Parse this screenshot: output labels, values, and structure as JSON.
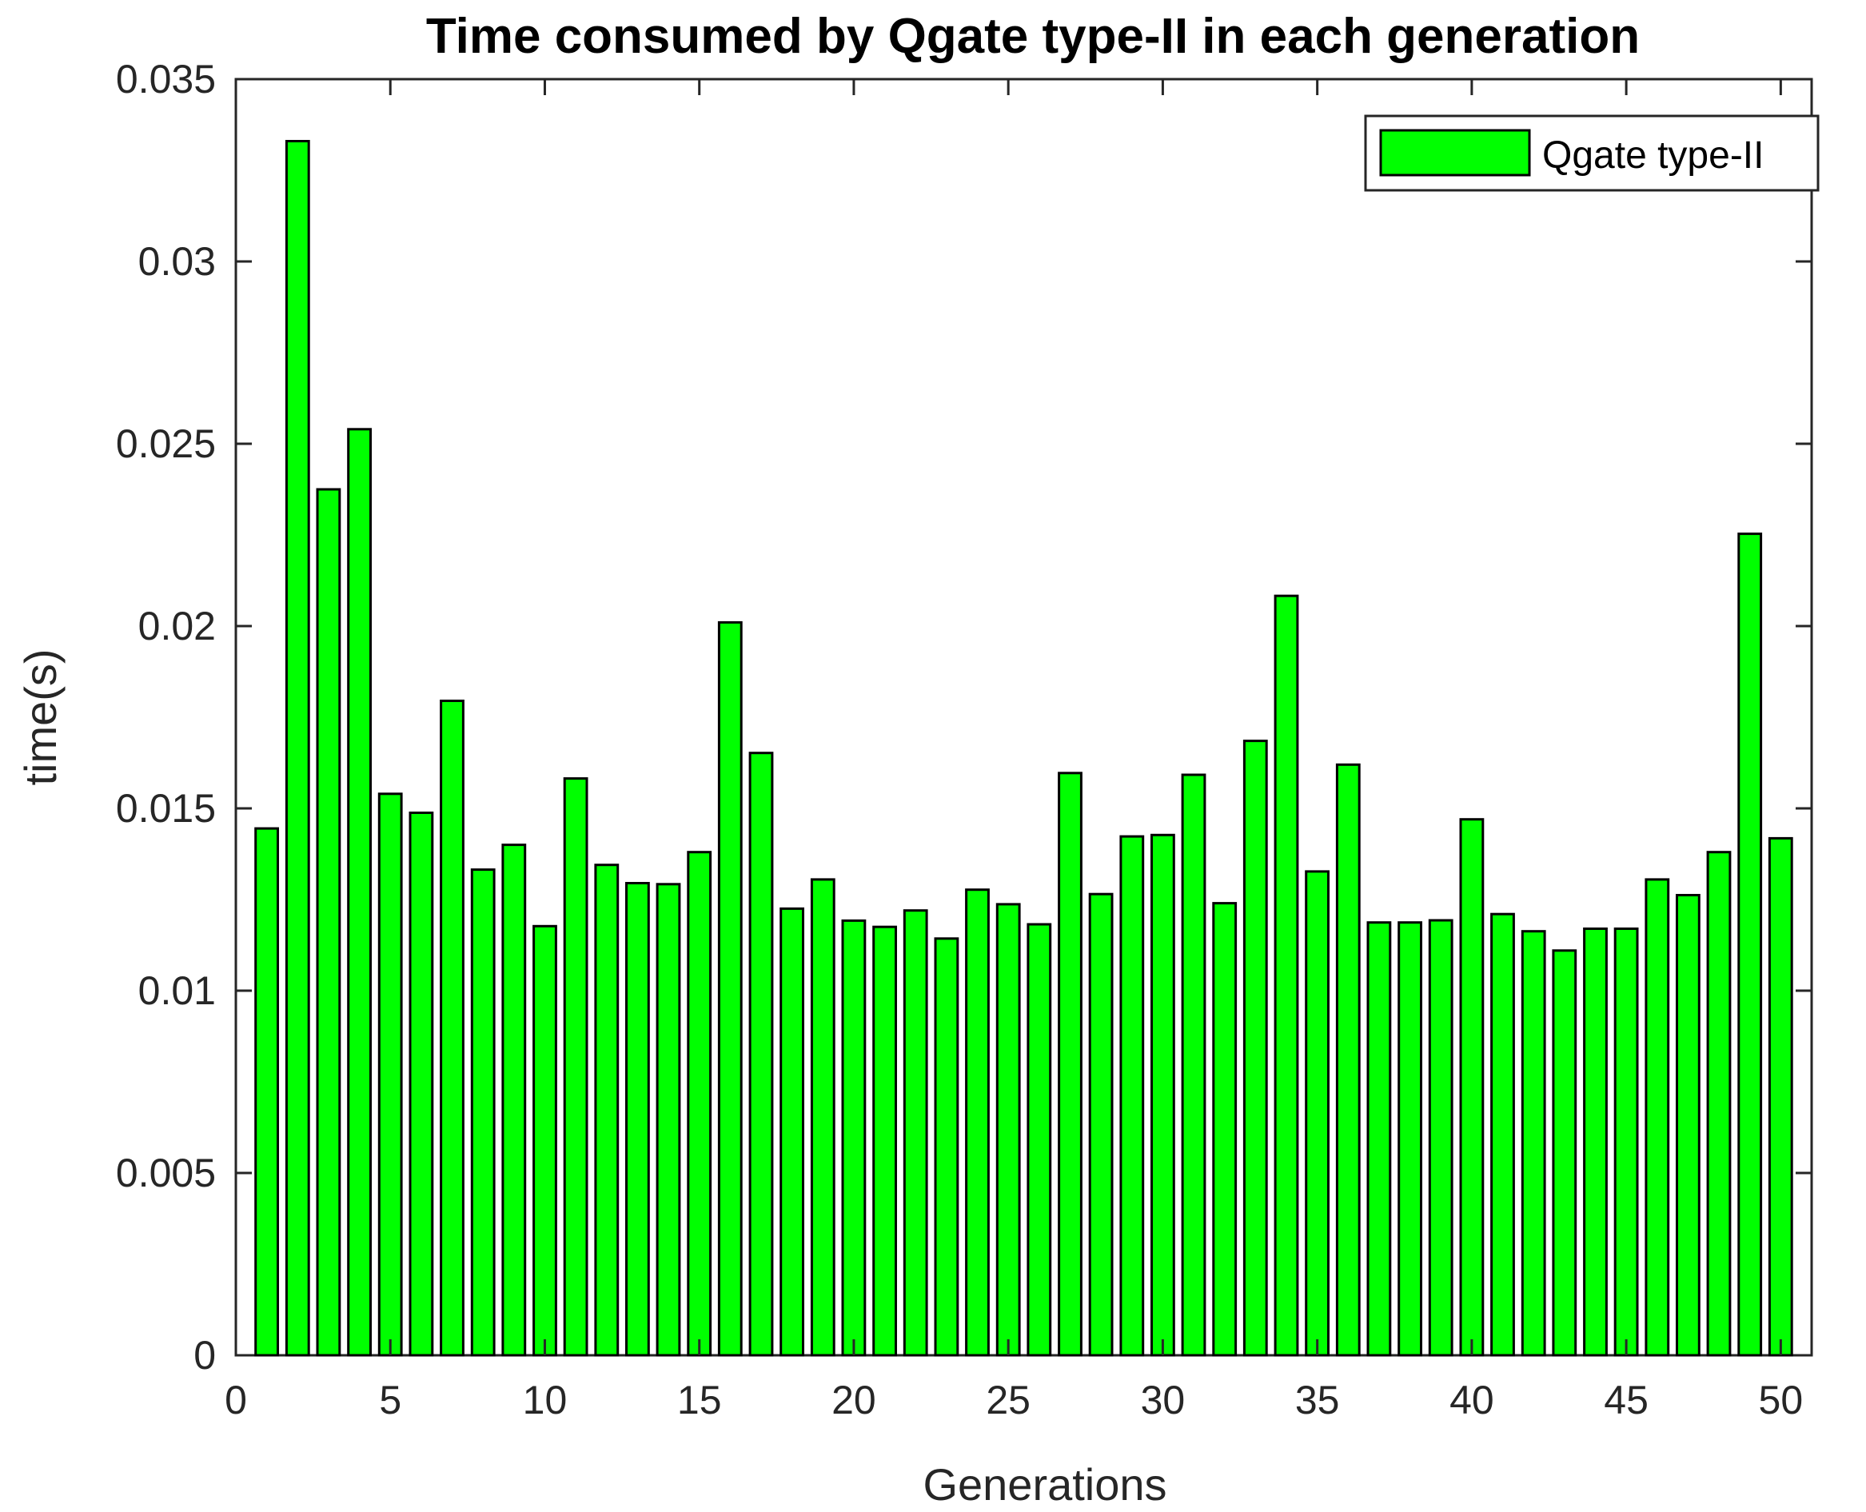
{
  "chart_data": {
    "type": "bar",
    "title": "Time consumed by Qgate type-II in each generation",
    "xlabel": "Generations",
    "ylabel": "time(s)",
    "xlim": [
      0,
      51
    ],
    "ylim": [
      0,
      0.035
    ],
    "xticks": [
      0,
      5,
      10,
      15,
      20,
      25,
      30,
      35,
      40,
      45,
      50
    ],
    "xtick_labels": [
      "0",
      "5",
      "10",
      "15",
      "20",
      "25",
      "30",
      "35",
      "40",
      "45",
      "50"
    ],
    "yticks": [
      0,
      0.005,
      0.01,
      0.015,
      0.02,
      0.025,
      0.03,
      0.035
    ],
    "ytick_labels": [
      "0",
      "0.005",
      "0.01",
      "0.015",
      "0.02",
      "0.025",
      "0.03",
      "0.035"
    ],
    "legend_position": "top-right",
    "grid": false,
    "series": [
      {
        "name": "Qgate type-II",
        "color": "#00ff00",
        "x": [
          1,
          2,
          3,
          4,
          5,
          6,
          7,
          8,
          9,
          10,
          11,
          12,
          13,
          14,
          15,
          16,
          17,
          18,
          19,
          20,
          21,
          22,
          23,
          24,
          25,
          26,
          27,
          28,
          29,
          30,
          31,
          32,
          33,
          34,
          35,
          36,
          37,
          38,
          39,
          40,
          41,
          42,
          43,
          44,
          45,
          46,
          47,
          48,
          49,
          50
        ],
        "values": [
          0.01445,
          0.0333,
          0.02375,
          0.0254,
          0.0154,
          0.01488,
          0.01795,
          0.01332,
          0.014,
          0.01177,
          0.01582,
          0.01345,
          0.01295,
          0.01292,
          0.0138,
          0.0201,
          0.01652,
          0.01225,
          0.01305,
          0.01192,
          0.01175,
          0.0122,
          0.01143,
          0.01277,
          0.01237,
          0.01182,
          0.01597,
          0.01265,
          0.01423,
          0.01427,
          0.01592,
          0.0124,
          0.01685,
          0.02083,
          0.01327,
          0.0162,
          0.01187,
          0.01187,
          0.01193,
          0.0147,
          0.0121,
          0.01163,
          0.0111,
          0.0117,
          0.0117,
          0.01305,
          0.01262,
          0.0138,
          0.02253,
          0.01418
        ]
      }
    ]
  }
}
